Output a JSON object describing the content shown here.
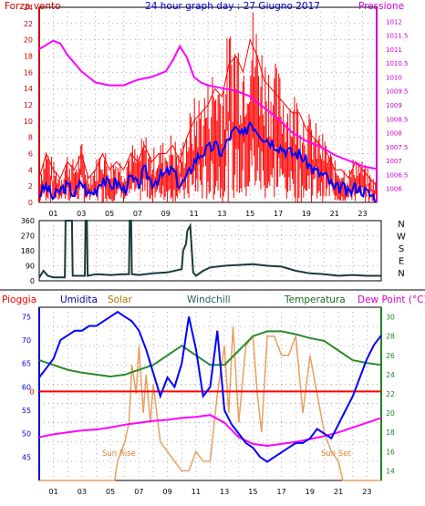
{
  "chart_data": [
    {
      "type": "line",
      "title": "24 hour graph day : 27 Giugno 2017",
      "left_axis_label": "Forza vento",
      "right_axis_label": "Pressione",
      "x_tick_labels": [
        "01",
        "03",
        "05",
        "07",
        "09",
        "11",
        "13",
        "15",
        "17",
        "19",
        "21",
        "23"
      ],
      "x_range": [
        0,
        24
      ],
      "left_ylim": [
        0,
        24
      ],
      "left_ticks": [
        0,
        2,
        4,
        6,
        8,
        10,
        12,
        14,
        16,
        18,
        20,
        22,
        24
      ],
      "right_ylim": [
        1005.5,
        1012.5
      ],
      "right_ticks": [
        1006,
        1006.5,
        1007,
        1007.5,
        1008,
        1008.5,
        1009,
        1009.5,
        1010,
        1010.5,
        1011,
        1011.5,
        1012
      ],
      "grid": true,
      "colors": {
        "gust": "#ff0000",
        "wind": "#0000ff",
        "pressure": "#ff00ff",
        "left_axis": "#cc0000",
        "right_axis": "#cc00cc"
      },
      "series": [
        {
          "axis": "left",
          "x": [
            0,
            0.5,
            1,
            1.5,
            2,
            2.5,
            3,
            3.5,
            4,
            4.5,
            5,
            5.5,
            6,
            6.5,
            7,
            7.5,
            8,
            8.5,
            9,
            9.5,
            10,
            10.5,
            11,
            11.5,
            12,
            12.5,
            13,
            13.5,
            14,
            14.5,
            15,
            15.5,
            16,
            16.5,
            17,
            17.5,
            18,
            18.5,
            19,
            19.5,
            20,
            20.5,
            21,
            21.5,
            22,
            22.5,
            23,
            23.5,
            24
          ],
          "values": [
            3,
            6,
            4,
            3,
            5,
            4,
            6,
            3,
            4,
            6,
            4,
            5,
            4,
            6,
            5,
            7,
            5,
            6,
            6,
            7,
            5,
            8,
            10,
            11,
            12,
            14,
            13,
            17,
            18,
            16,
            20,
            18,
            15,
            14,
            13,
            12,
            11,
            11,
            9,
            8,
            7,
            6,
            4,
            4,
            3,
            5,
            4,
            3,
            2
          ]
        },
        {
          "axis": "left",
          "x": [
            0,
            0.5,
            1,
            1.5,
            2,
            2.5,
            3,
            3.5,
            4,
            4.5,
            5,
            5.5,
            6,
            6.5,
            7,
            7.5,
            8,
            8.5,
            9,
            9.5,
            10,
            10.5,
            11,
            11.5,
            12,
            12.5,
            13,
            13.5,
            14,
            14.5,
            15,
            15.5,
            16,
            16.5,
            17,
            17.5,
            18,
            18.5,
            19,
            19.5,
            20,
            20.5,
            21,
            21.5,
            22,
            22.5,
            23,
            23.5,
            24
          ],
          "values": [
            1,
            2,
            0.5,
            1.5,
            2,
            1,
            2.5,
            1,
            1.5,
            3,
            2,
            2.5,
            1.5,
            3,
            2,
            4,
            2.5,
            3,
            3.5,
            4,
            2,
            3,
            5,
            6,
            6.5,
            7,
            6,
            8,
            9,
            8,
            10,
            9,
            8,
            7.5,
            7,
            6.5,
            6,
            6,
            5,
            4,
            3.5,
            3,
            1.5,
            2,
            1,
            2,
            1.5,
            1,
            0.5
          ]
        },
        {
          "axis": "right",
          "x": [
            0,
            1,
            1.5,
            2,
            3,
            4,
            5,
            6,
            7,
            8,
            9,
            9.5,
            10,
            10.5,
            11,
            11.5,
            12,
            13,
            14,
            15,
            16,
            17,
            18,
            19,
            20,
            21,
            22,
            23,
            24
          ],
          "values": [
            1011.0,
            1011.3,
            1011.2,
            1010.8,
            1010.2,
            1009.8,
            1009.7,
            1009.7,
            1009.9,
            1010.0,
            1010.2,
            1010.6,
            1011.1,
            1010.7,
            1010.0,
            1009.8,
            1009.7,
            1009.6,
            1009.5,
            1009.3,
            1008.9,
            1008.5,
            1008.0,
            1007.7,
            1007.5,
            1007.2,
            1007.0,
            1006.8,
            1006.7
          ]
        }
      ]
    },
    {
      "type": "line",
      "ylim": [
        0,
        360
      ],
      "y_ticks": [
        0,
        90,
        180,
        270,
        360
      ],
      "direction_labels": [
        "N",
        "W",
        "S",
        "E",
        "N"
      ],
      "x_tick_labels": [
        "01",
        "03",
        "05",
        "07",
        "09",
        "11",
        "13",
        "15",
        "17",
        "19",
        "21",
        "23"
      ],
      "grid": true,
      "color": "#1a3a3a",
      "series": [
        {
          "name": "wind direction",
          "x": [
            0,
            0.3,
            0.6,
            1,
            1.8,
            1.85,
            1.9,
            2.0,
            2.2,
            2.3,
            2.35,
            3.0,
            3.2,
            3.25,
            3.35,
            3.4,
            4.0,
            5.0,
            6.0,
            6.3,
            6.35,
            6.45,
            6.5,
            7,
            8,
            9,
            10,
            10.1,
            10.3,
            10.4,
            10.6,
            10.8,
            11,
            11.5,
            12,
            13,
            14,
            15,
            16,
            17,
            18,
            19,
            20,
            21,
            22,
            23,
            24
          ],
          "values": [
            20,
            60,
            30,
            20,
            20,
            360,
            360,
            360,
            360,
            360,
            30,
            30,
            30,
            360,
            360,
            30,
            40,
            35,
            40,
            40,
            360,
            360,
            40,
            35,
            45,
            50,
            70,
            180,
            220,
            300,
            330,
            50,
            30,
            60,
            80,
            90,
            95,
            100,
            90,
            85,
            60,
            45,
            40,
            30,
            35,
            30,
            30
          ]
        }
      ]
    },
    {
      "type": "line",
      "legend": [
        "Pioggia",
        "Umidita",
        "Solar",
        "Windchill",
        "Temperatura",
        "Dew Point (°C)"
      ],
      "annotations": [
        "Sun Rise",
        "Sun Set"
      ],
      "x_tick_labels": [
        "01",
        "03",
        "05",
        "07",
        "09",
        "11",
        "13",
        "15",
        "17",
        "19",
        "21",
        "23"
      ],
      "left_ylim": [
        40,
        77
      ],
      "left_ticks": [
        45,
        50,
        55,
        60,
        65,
        70,
        75
      ],
      "left_extra_tick": "0",
      "right_ylim": [
        13,
        31
      ],
      "right_ticks": [
        14,
        16,
        18,
        20,
        22,
        24,
        26,
        28,
        30
      ],
      "grid": true,
      "colors": {
        "rain": "#ff0000",
        "humidity": "#0000ff",
        "solar": "#e8a060",
        "temperature": "#2a8a2a",
        "dewpoint": "#ff00ff"
      },
      "series": [
        {
          "name": "Umidita",
          "x": [
            0,
            0.5,
            1,
            1.5,
            2,
            2.5,
            3,
            3.5,
            4,
            4.5,
            5,
            5.5,
            6,
            6.5,
            7,
            7.5,
            8,
            8.5,
            9,
            9.5,
            10,
            10.5,
            11,
            11.5,
            12,
            12.5,
            13,
            13.5,
            14,
            14.5,
            15,
            15.5,
            16,
            16.5,
            17,
            17.5,
            18,
            18.5,
            19,
            19.5,
            20,
            20.5,
            21,
            21.5,
            22,
            22.5,
            23,
            23.5,
            24
          ],
          "values": [
            62,
            64,
            66,
            70,
            71,
            72,
            72,
            73,
            73,
            74,
            75,
            76,
            75,
            74,
            72,
            68,
            63,
            58,
            62,
            60,
            65,
            75,
            68,
            58,
            60,
            72,
            55,
            52,
            50,
            48,
            47,
            45,
            44,
            45,
            46,
            47,
            48,
            48,
            49,
            51,
            50,
            49,
            52,
            55,
            58,
            62,
            66,
            69,
            71
          ]
        },
        {
          "name": "Temperatura",
          "x": [
            0,
            1,
            2,
            3,
            4,
            5,
            6,
            7,
            8,
            9,
            10,
            11,
            12,
            13,
            14,
            15,
            16,
            17,
            18,
            19,
            20,
            21,
            22,
            23,
            24
          ],
          "values": [
            25.5,
            25,
            24.5,
            24.2,
            24,
            23.8,
            24,
            24.5,
            25,
            26,
            27,
            26,
            25,
            25,
            26.5,
            28,
            28.5,
            28.5,
            28.2,
            27.8,
            27.5,
            26.5,
            25.5,
            25.2,
            25
          ]
        },
        {
          "name": "Dew Point (°C)",
          "x": [
            0,
            1,
            2,
            3,
            4,
            5,
            6,
            7,
            8,
            9,
            10,
            11,
            12,
            13,
            14,
            15,
            16,
            17,
            18,
            19,
            20,
            21,
            22,
            23,
            24
          ],
          "values": [
            17.5,
            17.8,
            18,
            18.2,
            18.3,
            18.5,
            18.8,
            19,
            19.2,
            19.3,
            19.5,
            19.6,
            19.8,
            19,
            17.5,
            16.8,
            16.6,
            16.8,
            17,
            17.3,
            17.6,
            18,
            18.5,
            19,
            19.5
          ]
        },
        {
          "name": "Solar",
          "x": [
            0,
            5.3,
            5.5,
            6,
            6.3,
            6.5,
            6.8,
            7,
            7.3,
            7.5,
            7.8,
            8,
            8.5,
            9,
            9.5,
            10,
            10.5,
            11,
            11.5,
            12,
            12.5,
            13,
            13.3,
            13.6,
            14,
            14.5,
            15,
            15.3,
            15.6,
            16,
            16.5,
            17,
            17.5,
            18,
            18.5,
            19,
            19.5,
            20,
            20.5,
            21,
            21.3,
            24
          ],
          "values": [
            13,
            13,
            15,
            17,
            19,
            25,
            22,
            27,
            20,
            24,
            19,
            23,
            17,
            16,
            15,
            14,
            14,
            16,
            15,
            15,
            22,
            27,
            20,
            29,
            19,
            27,
            28,
            22,
            18,
            28,
            28,
            26,
            26,
            28,
            20,
            26,
            22,
            18,
            16,
            15,
            13,
            13
          ]
        },
        {
          "name": "Pioggia",
          "x": [
            0,
            24
          ],
          "values": [
            0,
            0
          ]
        }
      ]
    }
  ]
}
